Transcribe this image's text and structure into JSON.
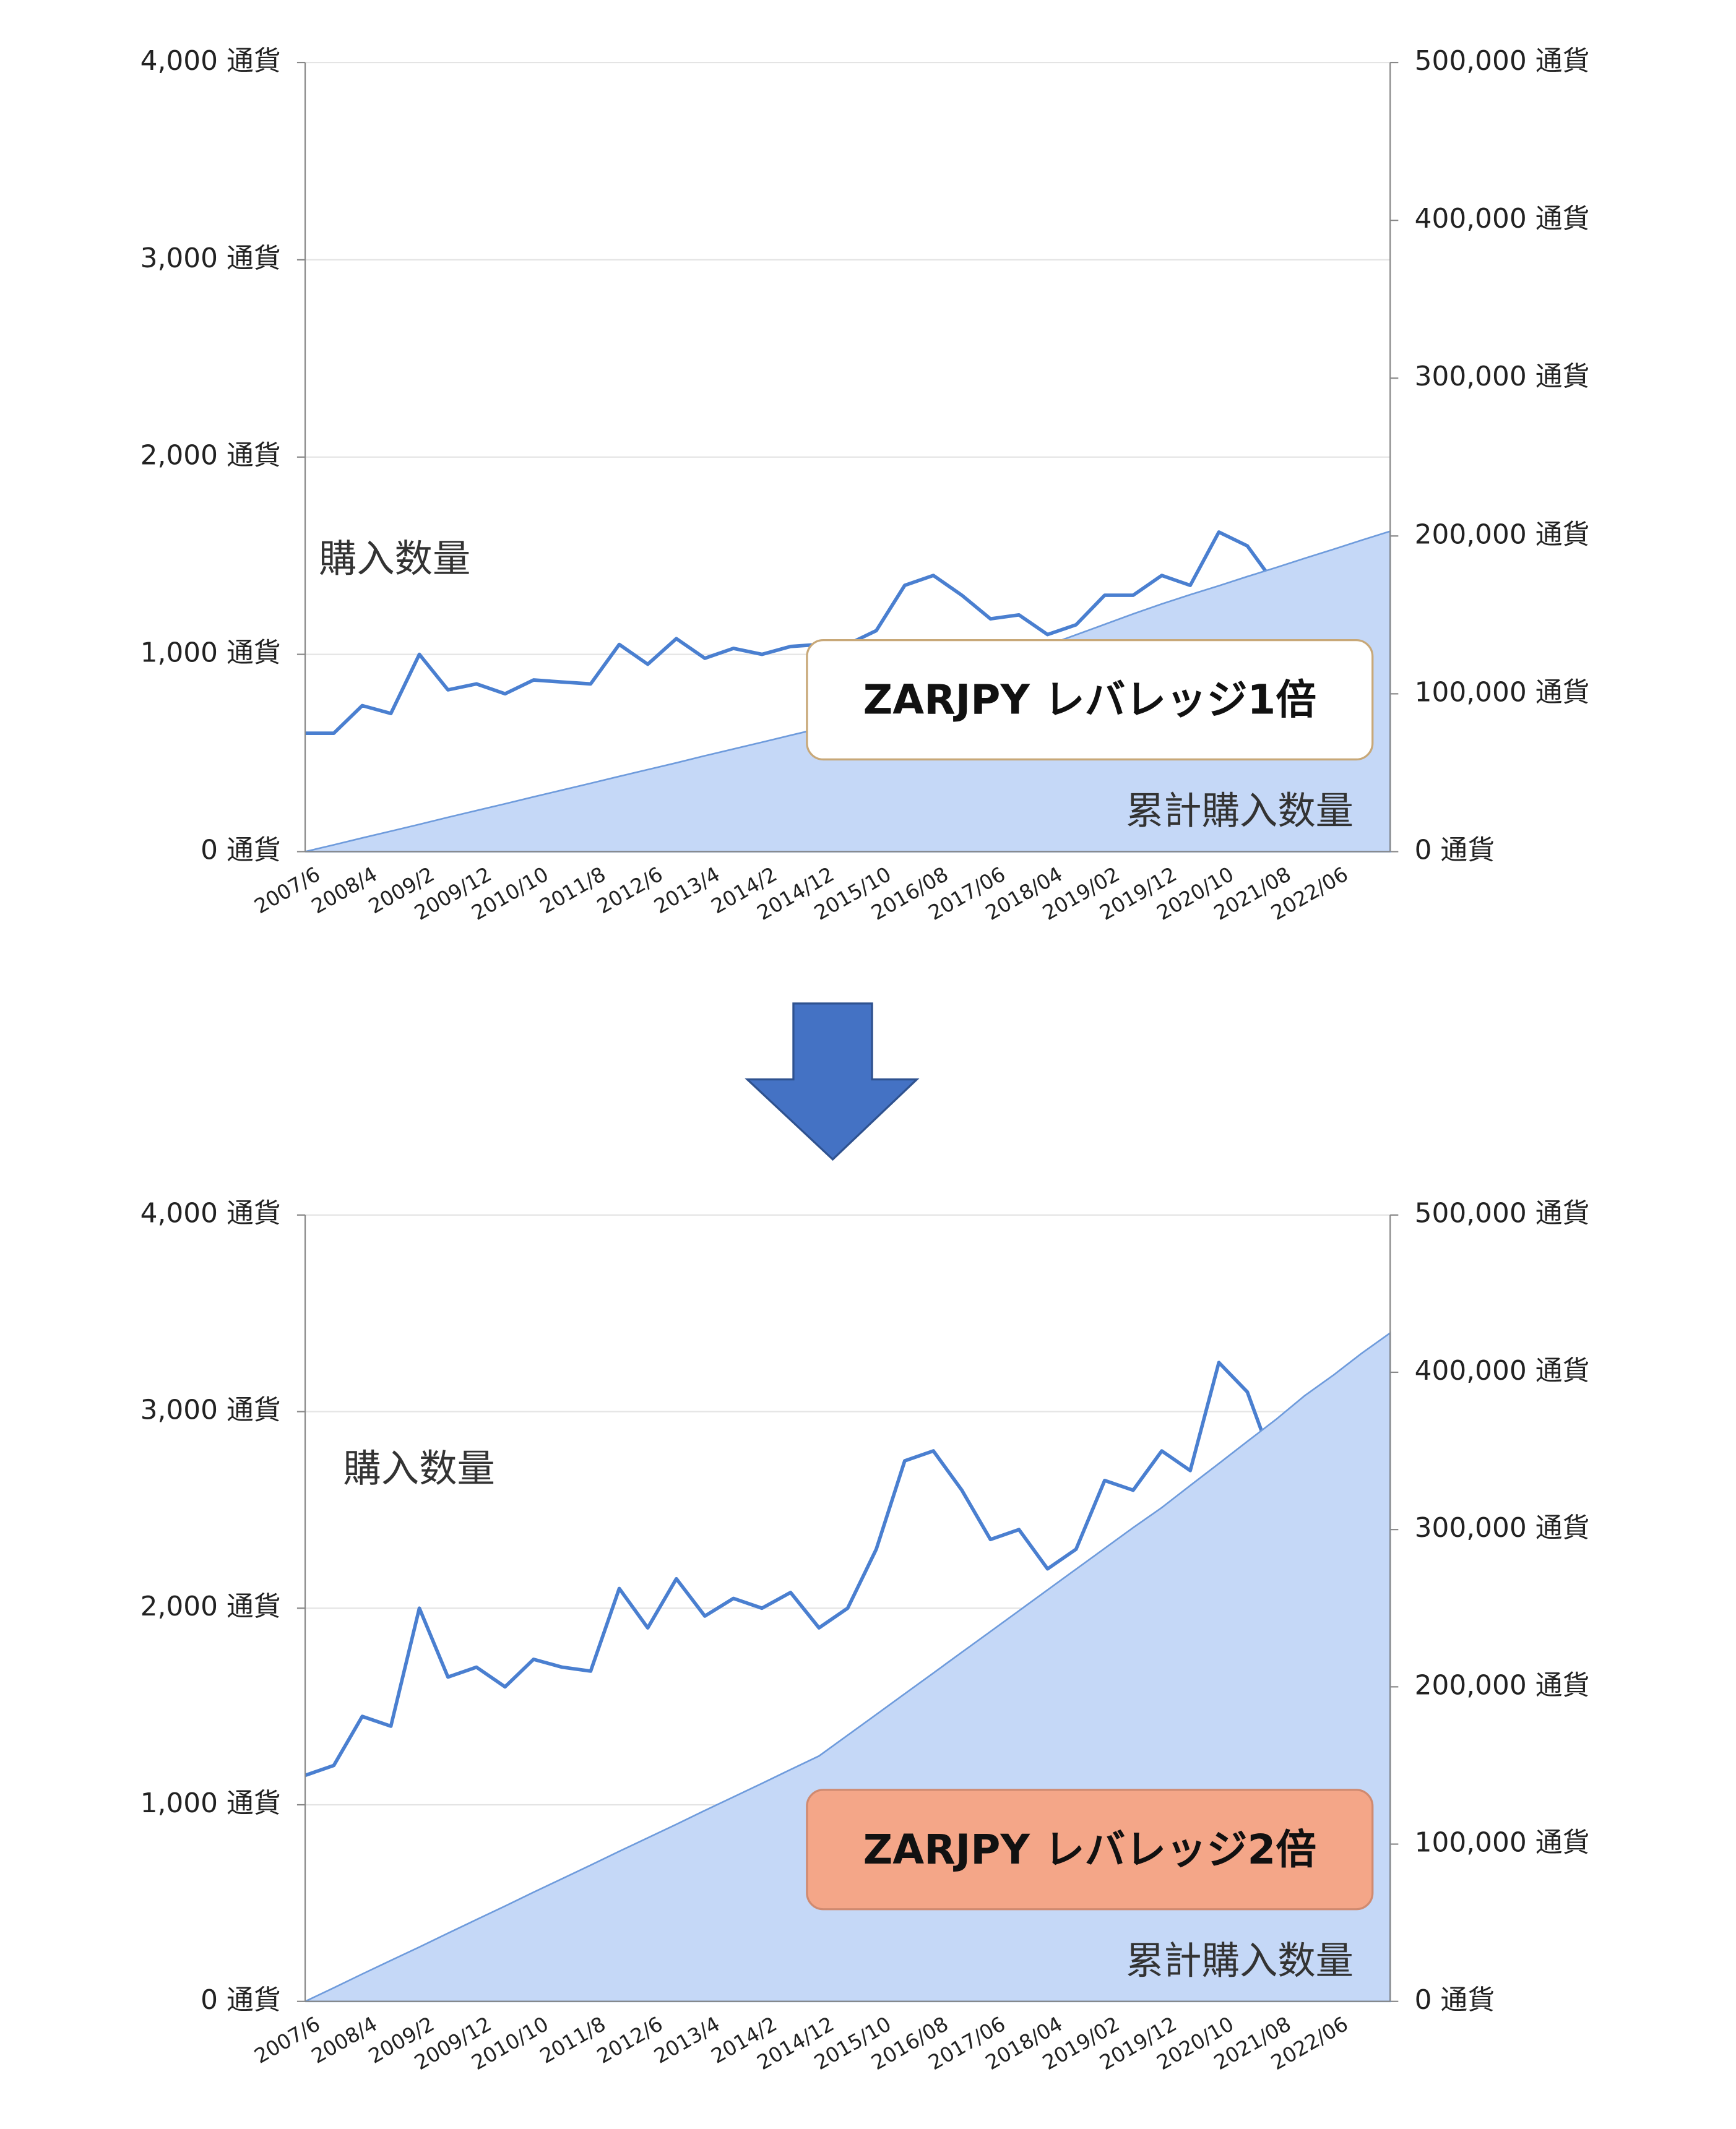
{
  "chart_data": [
    {
      "type": "combo",
      "title": "ZARJPY レバレッジ1倍",
      "box_color": "#ffffff",
      "box_border": "#c8a878",
      "categories": [
        "2007/6",
        null,
        "2008/4",
        null,
        "2009/2",
        null,
        "2009/12",
        null,
        "2010/10",
        null,
        "2011/8",
        null,
        "2012/6",
        null,
        "2013/4",
        null,
        "2014/2",
        null,
        "2014/12",
        null,
        "2015/10",
        null,
        "2016/08",
        null,
        "2017/06",
        null,
        "2018/04",
        null,
        "2019/02",
        null,
        "2019/12",
        null,
        "2020/10",
        null,
        "2021/08",
        null,
        "2022/06",
        null,
        null
      ],
      "ylim": [
        0,
        4000
      ],
      "yticks": [
        {
          "value": 0,
          "label": "0 通貨"
        },
        {
          "value": 1000,
          "label": "1,000 通貨"
        },
        {
          "value": 2000,
          "label": "2,000 通貨"
        },
        {
          "value": 3000,
          "label": "3,000 通貨"
        },
        {
          "value": 4000,
          "label": "4,000 通貨"
        }
      ],
      "y2lim": [
        0,
        500000
      ],
      "y2ticks": [
        {
          "value": 0,
          "label": "0 通貨"
        },
        {
          "value": 100000,
          "label": "100,000 通貨"
        },
        {
          "value": 200000,
          "label": "200,000 通貨"
        },
        {
          "value": 300000,
          "label": "300,000 通貨"
        },
        {
          "value": 400000,
          "label": "400,000 通貨"
        },
        {
          "value": 500000,
          "label": "500,000 通貨"
        }
      ],
      "grid": true,
      "series": [
        {
          "name": "購入数量",
          "type": "line",
          "color": "#4a7fd0",
          "values": [
            600,
            600,
            740,
            700,
            1000,
            820,
            850,
            800,
            870,
            860,
            850,
            1050,
            950,
            1080,
            980,
            1030,
            1000,
            1040,
            1050,
            1050,
            1120,
            1350,
            1400,
            1300,
            1180,
            1200,
            1100,
            1150,
            1300,
            1300,
            1400,
            1350,
            1620,
            1550,
            1350,
            1380,
            1350,
            1220,
            1240
          ]
        },
        {
          "name": "累計購入数量",
          "type": "area",
          "axis": "y2",
          "color": "#c5d8f7",
          "values": [
            0,
            4300,
            8700,
            13000,
            17300,
            21700,
            26000,
            30300,
            34700,
            39000,
            43300,
            47700,
            52000,
            56300,
            60700,
            65000,
            69300,
            73700,
            78000,
            84600,
            91200,
            97800,
            104400,
            111000,
            117600,
            124200,
            130800,
            137400,
            144000,
            150600,
            157000,
            162800,
            168500,
            174300,
            180000,
            185800,
            191500,
            197300,
            203000
          ]
        }
      ]
    },
    {
      "type": "combo",
      "title": "ZARJPY レバレッジ2倍",
      "box_color": "#f4a688",
      "box_border": "#d08a70",
      "categories": [
        "2007/6",
        null,
        "2008/4",
        null,
        "2009/2",
        null,
        "2009/12",
        null,
        "2010/10",
        null,
        "2011/8",
        null,
        "2012/6",
        null,
        "2013/4",
        null,
        "2014/2",
        null,
        "2014/12",
        null,
        "2015/10",
        null,
        "2016/08",
        null,
        "2017/06",
        null,
        "2018/04",
        null,
        "2019/02",
        null,
        "2019/12",
        null,
        "2020/10",
        null,
        "2021/08",
        null,
        "2022/06",
        null,
        null
      ],
      "ylim": [
        0,
        4000
      ],
      "yticks": [
        {
          "value": 0,
          "label": "0 通貨"
        },
        {
          "value": 1000,
          "label": "1,000 通貨"
        },
        {
          "value": 2000,
          "label": "2,000 通貨"
        },
        {
          "value": 3000,
          "label": "3,000 通貨"
        },
        {
          "value": 4000,
          "label": "4,000 通貨"
        }
      ],
      "y2lim": [
        0,
        500000
      ],
      "y2ticks": [
        {
          "value": 0,
          "label": "0 通貨"
        },
        {
          "value": 100000,
          "label": "100,000 通貨"
        },
        {
          "value": 200000,
          "label": "200,000 通貨"
        },
        {
          "value": 300000,
          "label": "300,000 通貨"
        },
        {
          "value": 400000,
          "label": "400,000 通貨"
        },
        {
          "value": 500000,
          "label": "500,000 通貨"
        }
      ],
      "grid": true,
      "series": [
        {
          "name": "購入数量",
          "type": "line",
          "color": "#4a7fd0",
          "values": [
            1150,
            1200,
            1450,
            1400,
            2000,
            1650,
            1700,
            1600,
            1740,
            1700,
            1680,
            2100,
            1900,
            2150,
            1960,
            2050,
            2000,
            2080,
            1900,
            2000,
            2300,
            2750,
            2800,
            2600,
            2350,
            2400,
            2200,
            2300,
            2650,
            2600,
            2800,
            2700,
            3250,
            3100,
            2700,
            2750,
            2450,
            2440,
            2480
          ]
        },
        {
          "name": "累計購入数量",
          "type": "area",
          "axis": "y2",
          "color": "#c5d8f7",
          "values": [
            0,
            8600,
            17400,
            26000,
            34600,
            43400,
            52000,
            60600,
            69400,
            78000,
            86600,
            95400,
            104000,
            112600,
            121400,
            130000,
            138600,
            147400,
            156000,
            169200,
            182400,
            195600,
            208800,
            222000,
            235200,
            248400,
            261600,
            274800,
            288000,
            301200,
            314000,
            328000,
            342000,
            356000,
            370000,
            385000,
            398000,
            412000,
            425000
          ]
        }
      ]
    }
  ]
}
